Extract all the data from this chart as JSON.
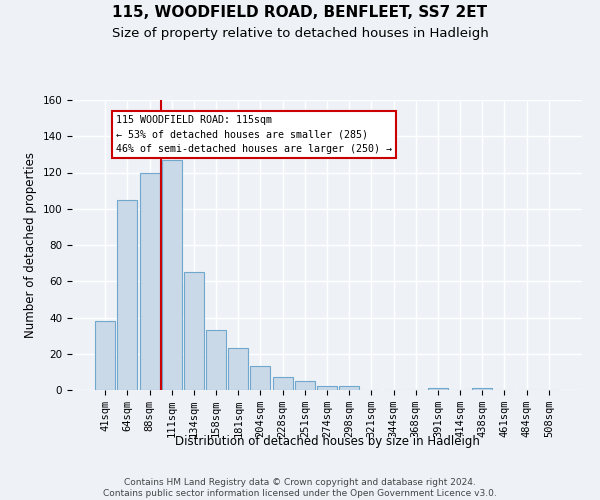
{
  "title": "115, WOODFIELD ROAD, BENFLEET, SS7 2ET",
  "subtitle": "Size of property relative to detached houses in Hadleigh",
  "xlabel": "Distribution of detached houses by size in Hadleigh",
  "ylabel": "Number of detached properties",
  "bar_labels": [
    "41sqm",
    "64sqm",
    "88sqm",
    "111sqm",
    "134sqm",
    "158sqm",
    "181sqm",
    "204sqm",
    "228sqm",
    "251sqm",
    "274sqm",
    "298sqm",
    "321sqm",
    "344sqm",
    "368sqm",
    "391sqm",
    "414sqm",
    "438sqm",
    "461sqm",
    "484sqm",
    "508sqm"
  ],
  "bar_values": [
    38,
    105,
    120,
    127,
    65,
    33,
    23,
    13,
    7,
    5,
    2,
    2,
    0,
    0,
    0,
    1,
    0,
    1,
    0,
    0,
    0
  ],
  "bar_color": "#c9d9e8",
  "bar_edge_color": "#6fa8cc",
  "ylim": [
    0,
    160
  ],
  "yticks": [
    0,
    20,
    40,
    60,
    80,
    100,
    120,
    140,
    160
  ],
  "vline_x_index": 3,
  "vline_color": "#cc0000",
  "annotation_line1": "115 WOODFIELD ROAD: 115sqm",
  "annotation_line2": "← 53% of detached houses are smaller (285)",
  "annotation_line3": "46% of semi-detached houses are larger (250) →",
  "footer_text": "Contains HM Land Registry data © Crown copyright and database right 2024.\nContains public sector information licensed under the Open Government Licence v3.0.",
  "bg_color": "#eef2f7",
  "plot_bg_color": "#eef2f7",
  "grid_color": "#ffffff",
  "title_fontsize": 11,
  "subtitle_fontsize": 9.5,
  "label_fontsize": 8.5,
  "tick_fontsize": 7.5,
  "footer_fontsize": 6.5
}
